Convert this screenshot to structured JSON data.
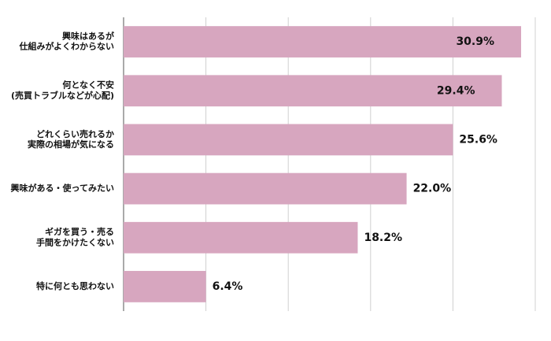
{
  "chart_data": {
    "type": "bar",
    "orientation": "horizontal",
    "categories": [
      "興味はあるが\n仕組みがよくわからない",
      "何となく不安\n(売買トラブルなどが心配)",
      "どれくらい売れるか\n実際の相場が気になる",
      "興味がある・使ってみたい",
      "ギガを買う・売る\n手間をかけたくない",
      "特に何とも思わない"
    ],
    "values": [
      30.9,
      29.4,
      25.6,
      22.0,
      18.2,
      6.4
    ],
    "value_labels": [
      "30.9%",
      "29.4%",
      "25.6%",
      "22.0%",
      "18.2%",
      "6.4%"
    ],
    "color": "#d7a6bf",
    "xlim": [
      0,
      32
    ],
    "xticks": [
      0,
      6.4,
      12.8,
      19.2,
      25.6,
      32
    ],
    "grid": true
  }
}
